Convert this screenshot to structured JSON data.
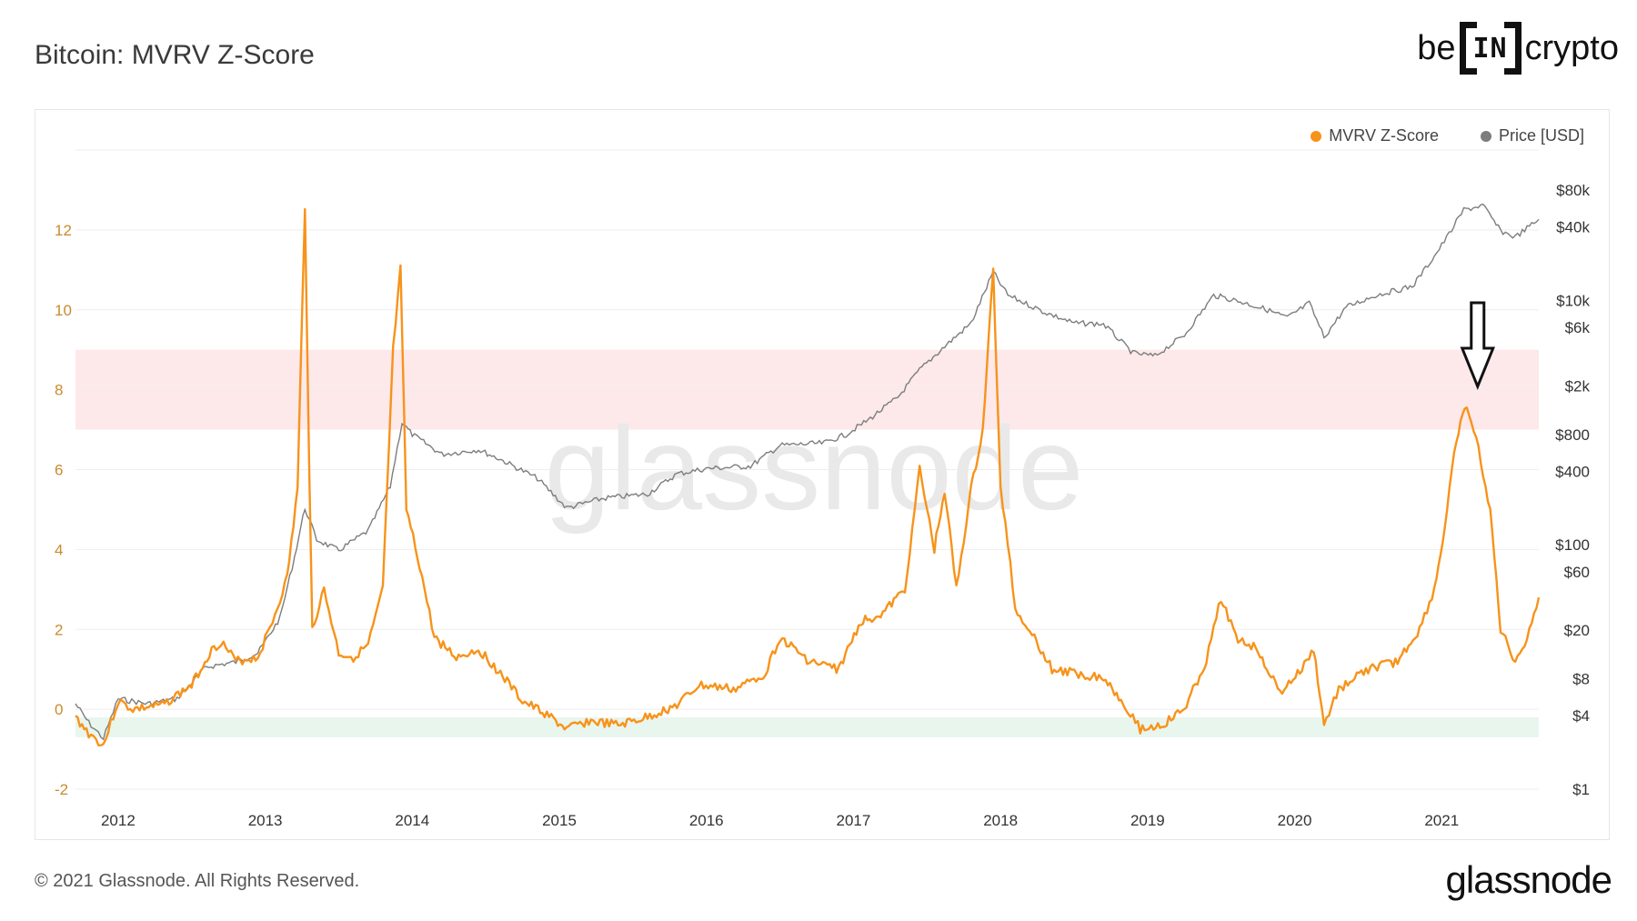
{
  "header": {
    "title": "Bitcoin: MVRV Z-Score"
  },
  "brand": {
    "pre": "be",
    "mid": "IN",
    "post": "crypto"
  },
  "legend": [
    {
      "label": "MVRV Z-Score",
      "color": "#f7931a"
    },
    {
      "label": "Price [USD]",
      "color": "#7d7d7d"
    }
  ],
  "watermark": "glassnode",
  "footer": {
    "copyright": "© 2021 Glassnode. All Rights Reserved.",
    "logo": "glassnode"
  },
  "chart_data": {
    "type": "line",
    "title": "Bitcoin: MVRV Z-Score",
    "x_ticks": [
      "2012",
      "2013",
      "2014",
      "2015",
      "2016",
      "2017",
      "2018",
      "2019",
      "2020",
      "2021"
    ],
    "x_range": [
      2011.71,
      2021.66
    ],
    "y_left": {
      "ticks": [
        "12",
        "10",
        "8",
        "6",
        "4",
        "2",
        "0",
        "-2"
      ],
      "range": [
        -2,
        14
      ],
      "color": "#c98a2e"
    },
    "y_right": {
      "ticks": [
        "$80k",
        "$40k",
        "$10k",
        "$6k",
        "$2k",
        "$800",
        "$400",
        "$100",
        "$60",
        "$20",
        "$8",
        "$4",
        "$1"
      ],
      "tick_values": [
        80000,
        40000,
        10000,
        6000,
        2000,
        800,
        400,
        100,
        60,
        20,
        8,
        4,
        1
      ],
      "scale": "log"
    },
    "zones": [
      {
        "name": "red",
        "from": 7,
        "to": 9,
        "color": "#fde8ea"
      },
      {
        "name": "green",
        "from": -0.7,
        "to": -0.2,
        "color": "#e8f6ee"
      }
    ],
    "arrow_at": [
      2021.17,
      7.9
    ],
    "grid": true,
    "series": [
      {
        "name": "MVRV Z-Score",
        "axis": "left",
        "color": "#f7931a",
        "points": [
          [
            2011.71,
            -0.2
          ],
          [
            2011.8,
            -0.6
          ],
          [
            2011.9,
            -0.9
          ],
          [
            2012.0,
            0.2
          ],
          [
            2012.1,
            0.0
          ],
          [
            2012.3,
            0.1
          ],
          [
            2012.5,
            0.6
          ],
          [
            2012.62,
            1.4
          ],
          [
            2012.7,
            1.7
          ],
          [
            2012.8,
            1.2
          ],
          [
            2012.95,
            1.3
          ],
          [
            2013.05,
            2.2
          ],
          [
            2013.15,
            3.3
          ],
          [
            2013.22,
            5.5
          ],
          [
            2013.27,
            12.6
          ],
          [
            2013.3,
            6.0
          ],
          [
            2013.32,
            2.0
          ],
          [
            2013.4,
            3.0
          ],
          [
            2013.5,
            1.4
          ],
          [
            2013.6,
            1.3
          ],
          [
            2013.7,
            1.6
          ],
          [
            2013.8,
            3.0
          ],
          [
            2013.87,
            9.0
          ],
          [
            2013.92,
            11.0
          ],
          [
            2013.96,
            5.0
          ],
          [
            2014.05,
            3.6
          ],
          [
            2014.15,
            1.8
          ],
          [
            2014.3,
            1.3
          ],
          [
            2014.45,
            1.5
          ],
          [
            2014.6,
            0.9
          ],
          [
            2014.75,
            0.2
          ],
          [
            2014.9,
            -0.1
          ],
          [
            2015.05,
            -0.5
          ],
          [
            2015.2,
            -0.3
          ],
          [
            2015.4,
            -0.4
          ],
          [
            2015.6,
            -0.2
          ],
          [
            2015.8,
            0.1
          ],
          [
            2015.95,
            0.6
          ],
          [
            2016.2,
            0.5
          ],
          [
            2016.4,
            0.9
          ],
          [
            2016.5,
            1.8
          ],
          [
            2016.7,
            1.2
          ],
          [
            2016.9,
            1.0
          ],
          [
            2017.05,
            2.2
          ],
          [
            2017.2,
            2.4
          ],
          [
            2017.35,
            3.0
          ],
          [
            2017.45,
            6.0
          ],
          [
            2017.55,
            4.0
          ],
          [
            2017.62,
            5.5
          ],
          [
            2017.7,
            3.0
          ],
          [
            2017.8,
            5.5
          ],
          [
            2017.88,
            7.0
          ],
          [
            2017.95,
            11.0
          ],
          [
            2018.0,
            5.5
          ],
          [
            2018.05,
            4.2
          ],
          [
            2018.1,
            2.5
          ],
          [
            2018.2,
            2.0
          ],
          [
            2018.35,
            1.0
          ],
          [
            2018.5,
            0.9
          ],
          [
            2018.7,
            0.8
          ],
          [
            2018.85,
            0.1
          ],
          [
            2018.95,
            -0.5
          ],
          [
            2019.1,
            -0.4
          ],
          [
            2019.25,
            0.0
          ],
          [
            2019.4,
            1.2
          ],
          [
            2019.5,
            2.8
          ],
          [
            2019.6,
            1.8
          ],
          [
            2019.75,
            1.5
          ],
          [
            2019.9,
            0.4
          ],
          [
            2020.05,
            1.0
          ],
          [
            2020.13,
            1.5
          ],
          [
            2020.2,
            -0.4
          ],
          [
            2020.3,
            0.5
          ],
          [
            2020.5,
            1.0
          ],
          [
            2020.7,
            1.2
          ],
          [
            2020.85,
            2.0
          ],
          [
            2020.95,
            3.0
          ],
          [
            2021.02,
            4.5
          ],
          [
            2021.1,
            6.8
          ],
          [
            2021.17,
            7.6
          ],
          [
            2021.25,
            6.5
          ],
          [
            2021.33,
            5.0
          ],
          [
            2021.4,
            2.0
          ],
          [
            2021.5,
            1.2
          ],
          [
            2021.58,
            1.8
          ],
          [
            2021.66,
            2.8
          ]
        ]
      },
      {
        "name": "Price [USD]",
        "axis": "right",
        "color": "#7d7d7d",
        "points": [
          [
            2011.71,
            5.0
          ],
          [
            2011.8,
            3.5
          ],
          [
            2011.9,
            2.6
          ],
          [
            2012.0,
            5.5
          ],
          [
            2012.2,
            5.0
          ],
          [
            2012.4,
            5.5
          ],
          [
            2012.6,
            10.0
          ],
          [
            2012.8,
            11.0
          ],
          [
            2012.95,
            13.0
          ],
          [
            2013.1,
            25.0
          ],
          [
            2013.2,
            80.0
          ],
          [
            2013.27,
            200.0
          ],
          [
            2013.35,
            110.0
          ],
          [
            2013.5,
            90.0
          ],
          [
            2013.7,
            130.0
          ],
          [
            2013.85,
            300.0
          ],
          [
            2013.93,
            1000.0
          ],
          [
            2014.0,
            800.0
          ],
          [
            2014.2,
            550.0
          ],
          [
            2014.45,
            600.0
          ],
          [
            2014.6,
            500.0
          ],
          [
            2014.85,
            350.0
          ],
          [
            2015.05,
            200.0
          ],
          [
            2015.3,
            240.0
          ],
          [
            2015.6,
            260.0
          ],
          [
            2015.8,
            380.0
          ],
          [
            2016.0,
            420.0
          ],
          [
            2016.3,
            440.0
          ],
          [
            2016.5,
            650.0
          ],
          [
            2016.8,
            680.0
          ],
          [
            2016.95,
            800.0
          ],
          [
            2017.1,
            1050.0
          ],
          [
            2017.3,
            1600.0
          ],
          [
            2017.45,
            2700.0
          ],
          [
            2017.62,
            4200.0
          ],
          [
            2017.8,
            6500.0
          ],
          [
            2017.95,
            17000.0
          ],
          [
            2018.05,
            11000.0
          ],
          [
            2018.3,
            8000.0
          ],
          [
            2018.5,
            6500.0
          ],
          [
            2018.7,
            6400.0
          ],
          [
            2018.9,
            3700.0
          ],
          [
            2019.05,
            3500.0
          ],
          [
            2019.25,
            5200.0
          ],
          [
            2019.45,
            11000.0
          ],
          [
            2019.6,
            10000.0
          ],
          [
            2019.8,
            8500.0
          ],
          [
            2019.95,
            7200.0
          ],
          [
            2020.1,
            9500.0
          ],
          [
            2020.2,
            5000.0
          ],
          [
            2020.35,
            8800.0
          ],
          [
            2020.55,
            11000.0
          ],
          [
            2020.8,
            13000.0
          ],
          [
            2020.95,
            23000.0
          ],
          [
            2021.05,
            35000.0
          ],
          [
            2021.15,
            55000.0
          ],
          [
            2021.28,
            60000.0
          ],
          [
            2021.4,
            37000.0
          ],
          [
            2021.5,
            33000.0
          ],
          [
            2021.66,
            46000.0
          ]
        ]
      }
    ]
  }
}
